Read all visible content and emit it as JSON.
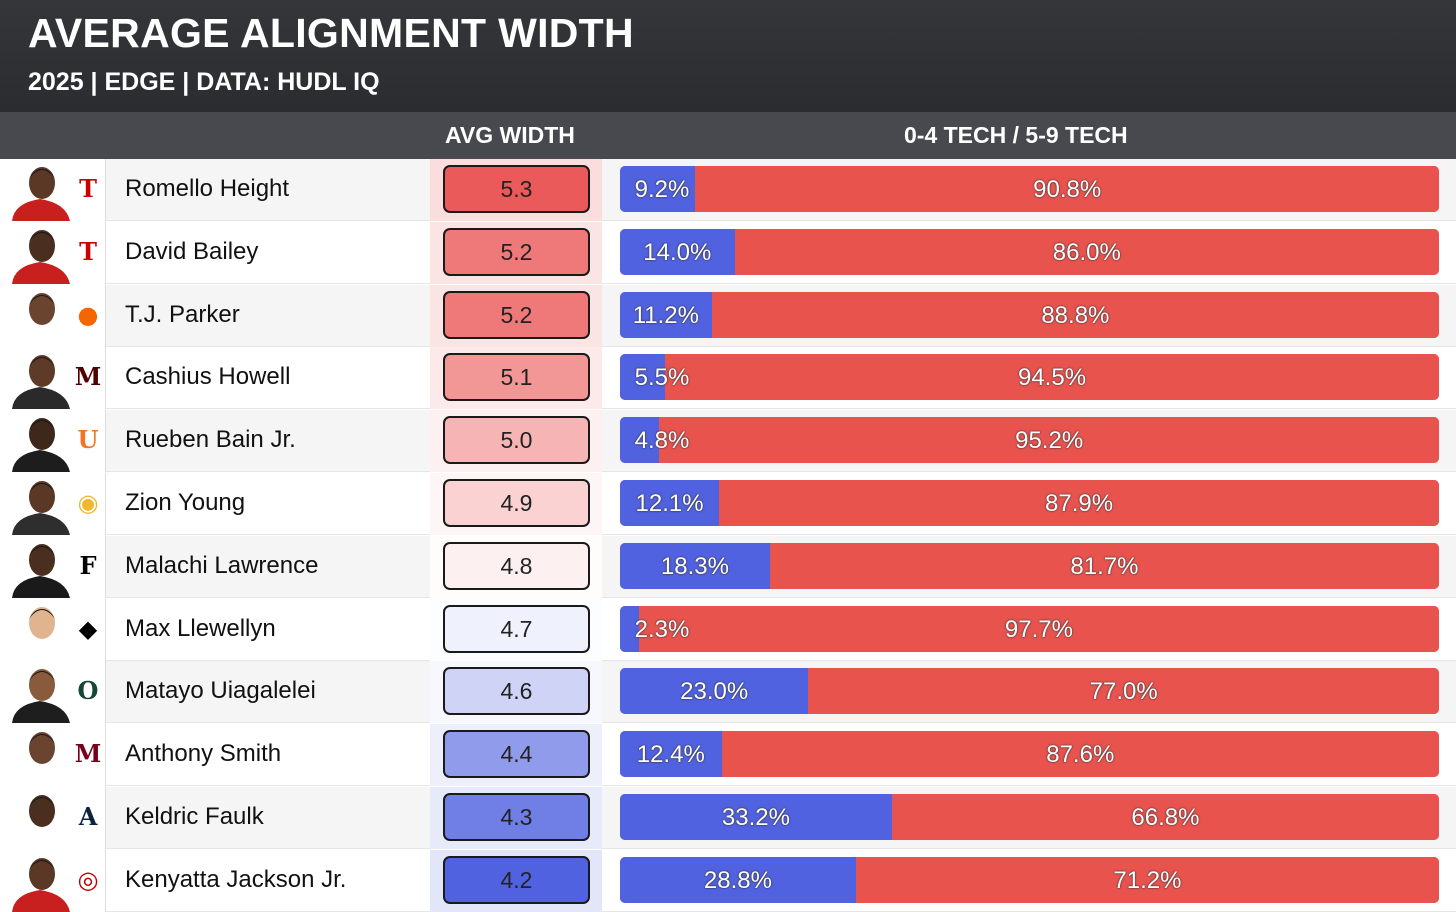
{
  "header": {
    "title": "AVERAGE ALIGNMENT WIDTH",
    "subtitle": "2025 | EDGE | DATA: HUDL IQ"
  },
  "columns": {
    "avg_width": "AVG WIDTH",
    "tech_split": "0-4 TECH / 5-9 TECH"
  },
  "colors": {
    "blue_segment": "#5062e0",
    "red_segment": "#e8534e",
    "header_bg": "#2f3034"
  },
  "chart_data": {
    "type": "table",
    "title": "AVERAGE ALIGNMENT WIDTH",
    "subtitle": "2025 | EDGE | DATA: HUDL IQ",
    "series": [
      {
        "name": "0-4 TECH"
      },
      {
        "name": "5-9 TECH"
      }
    ],
    "rows": [
      {
        "player": "Romello Height",
        "school_logo": "texas-tech-logo-icon",
        "avg_width": "5.3",
        "tech_0_4": 9.2,
        "tech_5_9": 90.8,
        "tech_0_4_label": "9.2%",
        "tech_5_9_label": "90.8%"
      },
      {
        "player": "David Bailey",
        "school_logo": "texas-tech-logo-icon",
        "avg_width": "5.2",
        "tech_0_4": 14.0,
        "tech_5_9": 86.0,
        "tech_0_4_label": "14.0%",
        "tech_5_9_label": "86.0%"
      },
      {
        "player": "T.J. Parker",
        "school_logo": "clemson-paw-logo-icon",
        "avg_width": "5.2",
        "tech_0_4": 11.2,
        "tech_5_9": 88.8,
        "tech_0_4_label": "11.2%",
        "tech_5_9_label": "88.8%"
      },
      {
        "player": "Cashius Howell",
        "school_logo": "texas-am-logo-icon",
        "avg_width": "5.1",
        "tech_0_4": 5.5,
        "tech_5_9": 94.5,
        "tech_0_4_label": "5.5%",
        "tech_5_9_label": "94.5%"
      },
      {
        "player": "Rueben Bain Jr.",
        "school_logo": "miami-u-logo-icon",
        "avg_width": "5.0",
        "tech_0_4": 4.8,
        "tech_5_9": 95.2,
        "tech_0_4_label": "4.8%",
        "tech_5_9_label": "95.2%"
      },
      {
        "player": "Zion Young",
        "school_logo": "missouri-tiger-logo-icon",
        "avg_width": "4.9",
        "tech_0_4": 12.1,
        "tech_5_9": 87.9,
        "tech_0_4_label": "12.1%",
        "tech_5_9_label": "87.9%"
      },
      {
        "player": "Malachi Lawrence",
        "school_logo": "ucf-logo-icon",
        "avg_width": "4.8",
        "tech_0_4": 18.3,
        "tech_5_9": 81.7,
        "tech_0_4_label": "18.3%",
        "tech_5_9_label": "81.7%"
      },
      {
        "player": "Max Llewellyn",
        "school_logo": "iowa-hawkeye-logo-icon",
        "avg_width": "4.7",
        "tech_0_4": 2.3,
        "tech_5_9": 97.7,
        "tech_0_4_label": "2.3%",
        "tech_5_9_label": "97.7%"
      },
      {
        "player": "Matayo Uiagalelei",
        "school_logo": "oregon-o-logo-icon",
        "avg_width": "4.6",
        "tech_0_4": 23.0,
        "tech_5_9": 77.0,
        "tech_0_4_label": "23.0%",
        "tech_5_9_label": "77.0%"
      },
      {
        "player": "Anthony Smith",
        "school_logo": "minnesota-m-logo-icon",
        "avg_width": "4.4",
        "tech_0_4": 12.4,
        "tech_5_9": 87.6,
        "tech_0_4_label": "12.4%",
        "tech_5_9_label": "87.6%"
      },
      {
        "player": "Keldric Faulk",
        "school_logo": "auburn-au-logo-icon",
        "avg_width": "4.3",
        "tech_0_4": 33.2,
        "tech_5_9": 66.8,
        "tech_0_4_label": "33.2%",
        "tech_5_9_label": "66.8%"
      },
      {
        "player": "Kenyatta Jackson Jr.",
        "school_logo": "ohio-state-logo-icon",
        "avg_width": "4.2",
        "tech_0_4": 28.8,
        "tech_5_9": 71.2,
        "tech_0_4_label": "28.8%",
        "tech_5_9_label": "71.2%"
      }
    ]
  }
}
